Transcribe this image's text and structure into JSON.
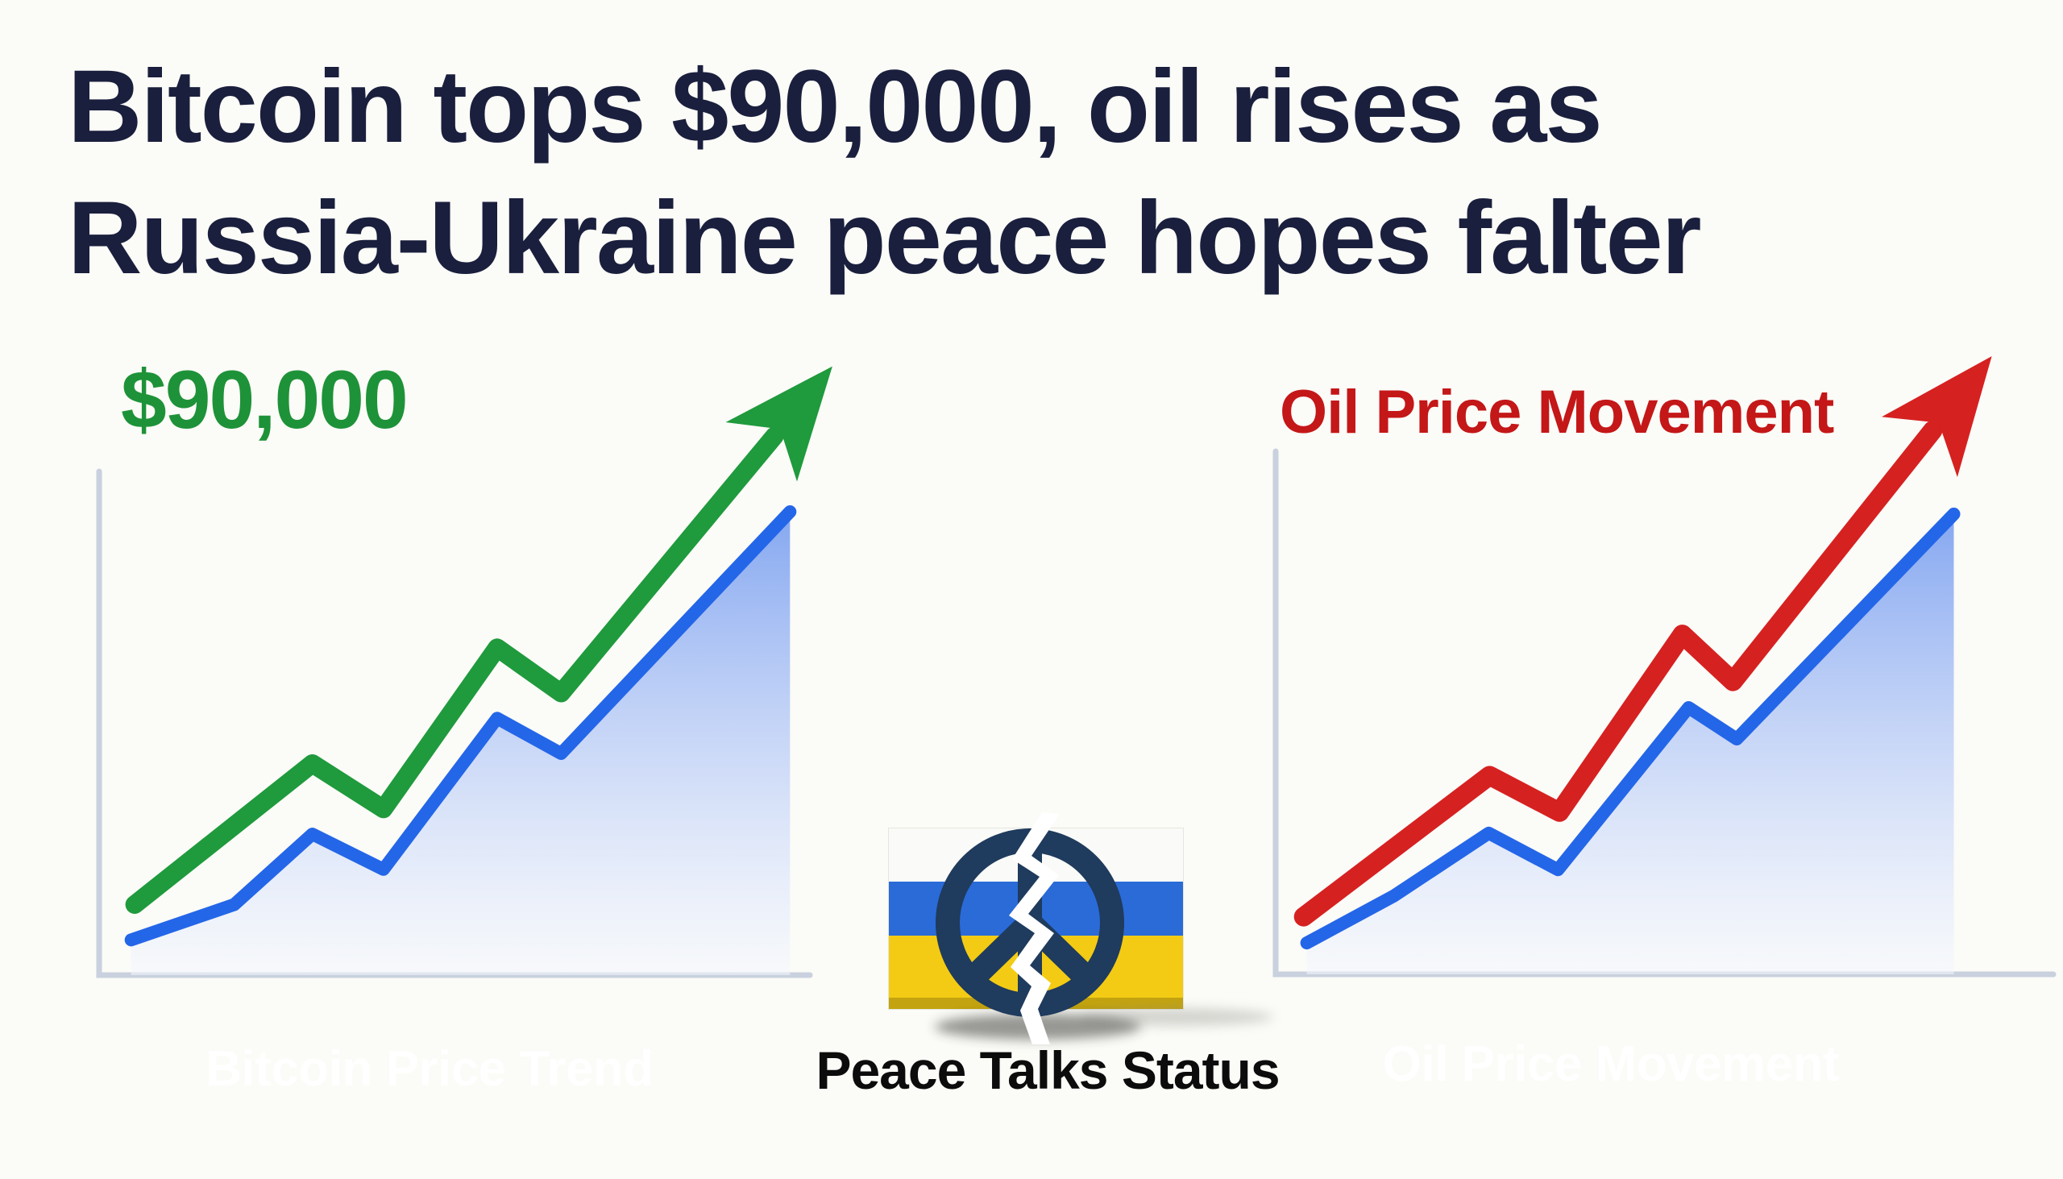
{
  "headline": {
    "line1": "Bitcoin tops $90,000, oil rises as",
    "line2": "Russia-Ukraine peace hopes falter"
  },
  "colors": {
    "background": "#fbfbf7",
    "headline_text": "#1a1f3d",
    "axis": "#c9d1de",
    "bitcoin_green": "#1f9a3d",
    "bitcoin_price_text": "#1e9238",
    "chart_blue_line": "#2466e8",
    "oil_red": "#d62121",
    "oil_title_text": "#c41718",
    "bitcoin_pill": "#2563e8",
    "oil_pill": "#e01d1d"
  },
  "bitcoin_panel": {
    "price_label": "$90,000",
    "caption": "Bitcoin Price Trend"
  },
  "oil_panel": {
    "title": "Oil Price Movement",
    "caption": "Oil Price Movement"
  },
  "peace_panel": {
    "caption": "Peace Talks Status",
    "symbol_color": "#1f3b5d",
    "flag": {
      "white_band": "#fafaf8",
      "blue_band": "#2a6bd8",
      "yellow_band": "#f3cb14",
      "gold_strip": "#c3a30f",
      "border": "#e6e6df"
    }
  },
  "chart_data": [
    {
      "type": "area",
      "title": "Bitcoin Price Trend",
      "xlabel": "",
      "ylabel": "",
      "ylim": [
        0,
        100
      ],
      "grid": false,
      "trend_color": "#1f9a3d",
      "area_line_color": "#2466e8",
      "series": [
        {
          "name": "bitcoin-trend-arrow",
          "x": [
            0.05,
            0.3,
            0.4,
            0.56,
            0.65,
            0.95
          ],
          "values": [
            14,
            42,
            33,
            65,
            56,
            107
          ]
        },
        {
          "name": "bitcoin-price-area",
          "x": [
            0.045,
            0.19,
            0.3,
            0.4,
            0.56,
            0.65,
            0.972
          ],
          "values": [
            7,
            14,
            28,
            21,
            51,
            44,
            92
          ]
        }
      ]
    },
    {
      "type": "area",
      "title": "Oil Price Movement",
      "xlabel": "",
      "ylabel": "",
      "ylim": [
        0,
        100
      ],
      "grid": false,
      "trend_color": "#d62121",
      "area_line_color": "#2466e8",
      "series": [
        {
          "name": "oil-trend-arrow",
          "x": [
            0.036,
            0.275,
            0.365,
            0.523,
            0.588,
            0.845
          ],
          "values": [
            11,
            38,
            31,
            65,
            56,
            104
          ]
        },
        {
          "name": "oil-price-area",
          "x": [
            0.04,
            0.152,
            0.274,
            0.363,
            0.531,
            0.593,
            0.872
          ],
          "values": [
            6,
            15,
            27,
            20,
            51,
            45,
            88
          ]
        }
      ]
    }
  ]
}
